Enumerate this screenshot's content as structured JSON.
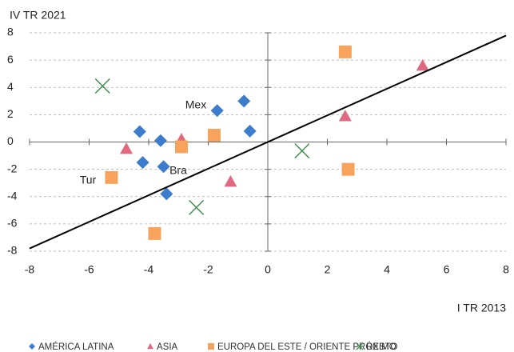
{
  "chart_data": {
    "type": "scatter",
    "ylabel": "IV TR 2021",
    "xlabel": "I TR 2013",
    "xlim": [
      -8,
      8
    ],
    "ylim": [
      -8,
      8
    ],
    "xticks": [
      -8,
      -6,
      -4,
      -2,
      0,
      2,
      4,
      6,
      8
    ],
    "yticks": [
      -8,
      -6,
      -4,
      -2,
      0,
      2,
      4,
      6,
      8
    ],
    "grid": true,
    "series": [
      {
        "name": "AMÉRICA LATINA",
        "marker": "diamond",
        "color": "#3b7dcc",
        "x": [
          -4.3,
          -3.6,
          -4.2,
          -3.5,
          -3.4,
          -1.7,
          -0.8,
          -0.6
        ],
        "values": [
          0.76,
          0.1,
          -1.5,
          -1.8,
          -3.8,
          2.3,
          3.0,
          0.8
        ]
      },
      {
        "name": "ASIA",
        "marker": "triangle",
        "color": "#e0697f",
        "x": [
          -4.75,
          -2.9,
          -1.25,
          2.6,
          5.2
        ],
        "values": [
          -0.5,
          0.2,
          -2.9,
          1.9,
          5.6
        ]
      },
      {
        "name": "EUROPA DEL ESTE / ORIENTE PRÓXIMO",
        "marker": "square",
        "color": "#f7a35c",
        "x": [
          -5.25,
          -3.8,
          -2.9,
          -1.8,
          2.6,
          2.7
        ],
        "values": [
          -2.6,
          -6.7,
          -0.35,
          0.5,
          6.6,
          -2.0
        ]
      },
      {
        "name": "RESTO",
        "marker": "cross",
        "color": "#3a8a48",
        "x": [
          -5.55,
          -2.4,
          1.15
        ],
        "values": [
          4.1,
          -4.8,
          -0.65
        ]
      }
    ],
    "reference_line": {
      "color": "#000000",
      "x": [
        -8,
        8
      ],
      "values": [
        -7.8,
        7.8
      ]
    },
    "annotations": [
      "Mex",
      "Bra",
      "Tur"
    ]
  }
}
